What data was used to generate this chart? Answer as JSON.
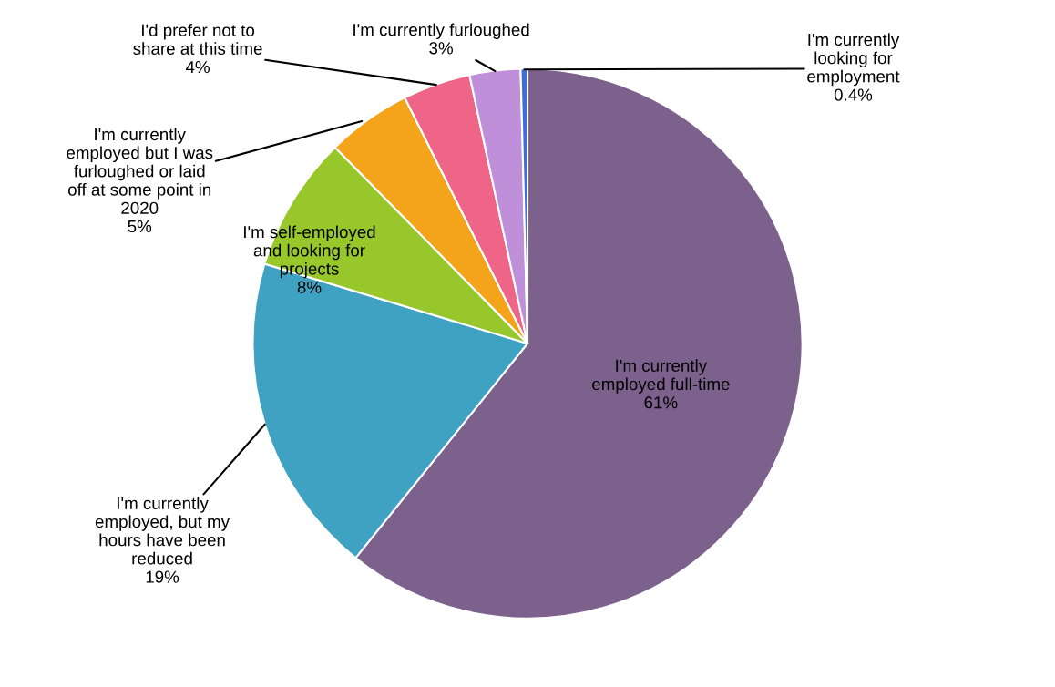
{
  "chart_data": {
    "type": "pie",
    "categories": [
      "I'm currently\nemployed full-time",
      "I'm currently\nemployed, but my\nhours have been\nreduced",
      "I'm self-employed\nand looking for\nprojects",
      "I'm currently\nemployed but I was\nfurloughed or laid\noff at some point in\n2020",
      "I'd prefer not to\nshare at this time",
      "I'm currently furloughed",
      "I'm currently\nlooking for\nemployment"
    ],
    "values": [
      61,
      19,
      8,
      5,
      4,
      3,
      0.4
    ],
    "value_labels": [
      "61%",
      "19%",
      "8%",
      "5%",
      "4%",
      "3%",
      "0.4%"
    ],
    "colors": [
      "#7b618c",
      "#3fa2c2",
      "#97c72a",
      "#f4a41b",
      "#ee6588",
      "#c08fda",
      "#3a6fd6"
    ]
  }
}
